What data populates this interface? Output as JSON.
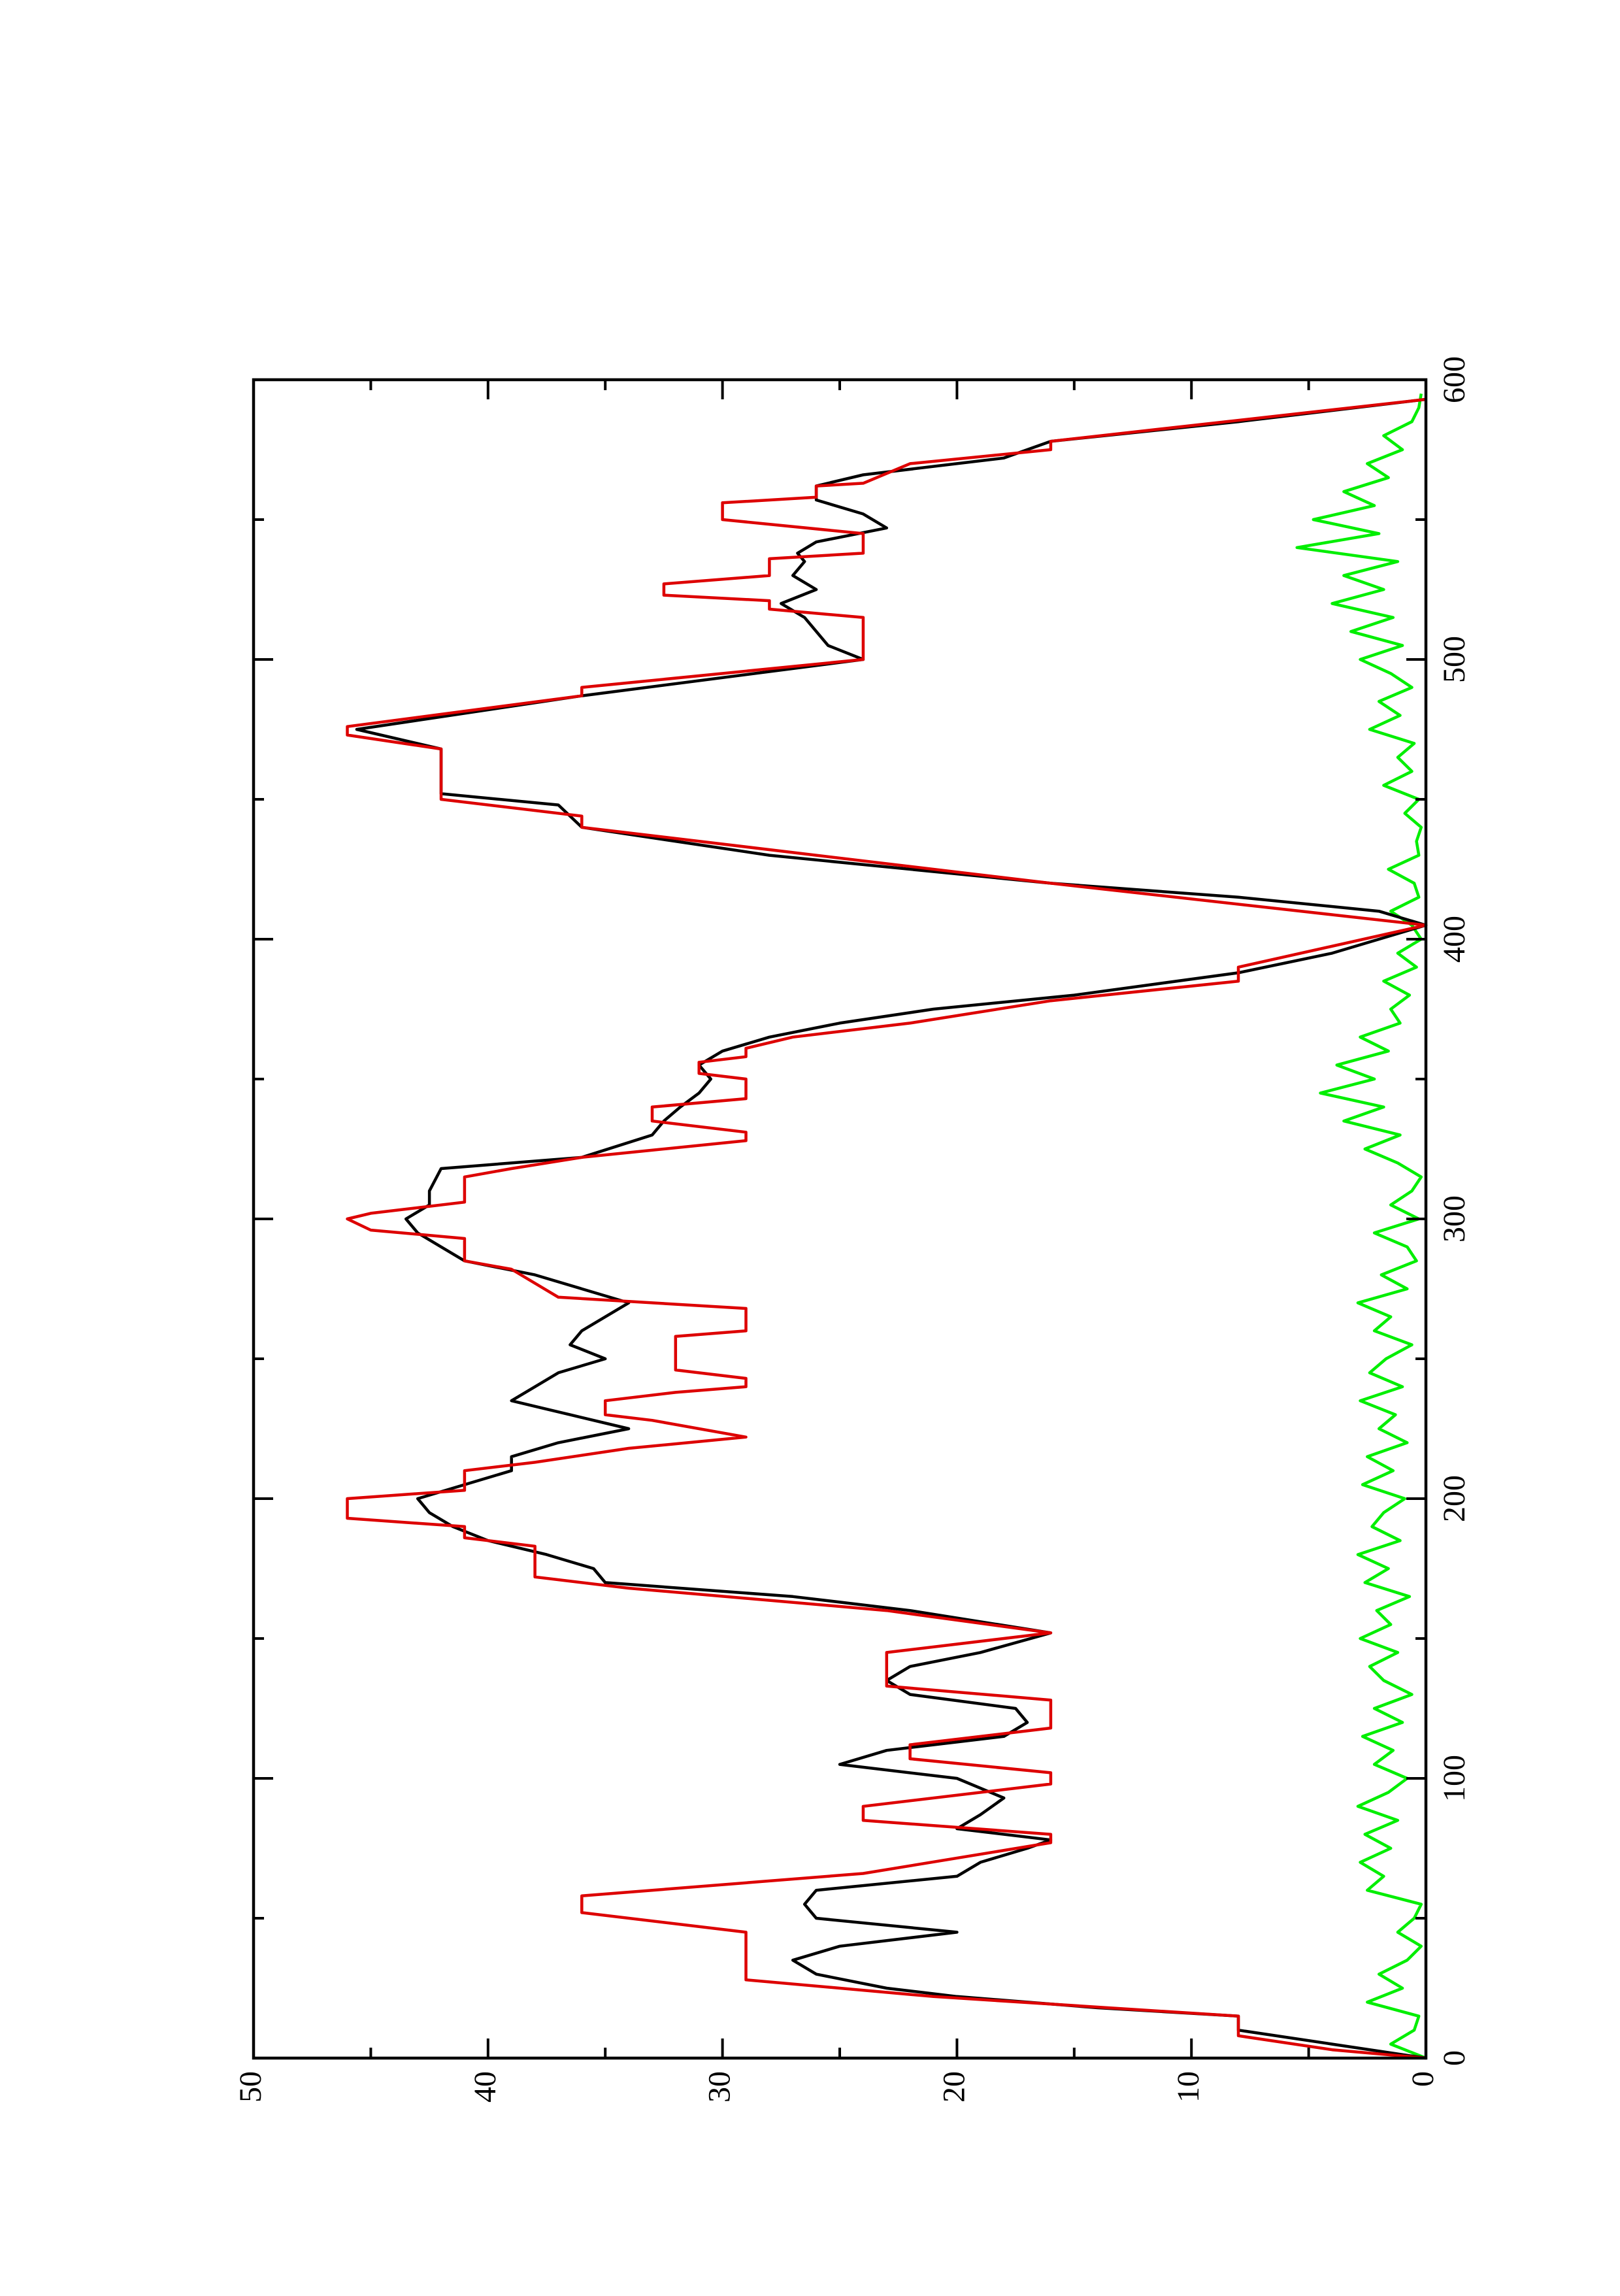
{
  "chart_data": {
    "type": "line",
    "xlim": [
      0,
      600
    ],
    "xticks": [
      0,
      100,
      200,
      300,
      400,
      500,
      600
    ],
    "minor_xticks": [
      50,
      150,
      250,
      350,
      450,
      550
    ],
    "ylim": [
      0,
      50
    ],
    "yticks": [
      0,
      10,
      20,
      30,
      40,
      50
    ],
    "minor_yticks": [
      5,
      15,
      25,
      35,
      45
    ],
    "series": [
      {
        "color": "#00ee00",
        "x": [
          0,
          5,
          10,
          15,
          20,
          25,
          30,
          35,
          40,
          45,
          50,
          55,
          60,
          65,
          70,
          75,
          80,
          85,
          90,
          95,
          100,
          105,
          110,
          115,
          120,
          125,
          130,
          135,
          140,
          145,
          150,
          155,
          160,
          165,
          170,
          175,
          180,
          185,
          190,
          195,
          200,
          205,
          210,
          215,
          220,
          225,
          230,
          235,
          240,
          245,
          250,
          255,
          260,
          265,
          270,
          275,
          280,
          285,
          290,
          295,
          300,
          305,
          310,
          315,
          320,
          325,
          330,
          335,
          340,
          345,
          350,
          355,
          360,
          365,
          370,
          375,
          380,
          385,
          390,
          395,
          400,
          405,
          410,
          415,
          420,
          425,
          430,
          435,
          440,
          445,
          450,
          455,
          460,
          465,
          470,
          475,
          480,
          485,
          490,
          495,
          500,
          505,
          510,
          515,
          520,
          525,
          530,
          535,
          540,
          545,
          550,
          555,
          560,
          565,
          570,
          575,
          580,
          585,
          590,
          595
        ],
        "values": [
          0,
          1.5,
          0.5,
          0.3,
          2.5,
          1,
          2,
          0.8,
          0.2,
          1.2,
          0.5,
          0.2,
          2.5,
          1.8,
          2.8,
          1.5,
          2.6,
          1.2,
          2.9,
          1.6,
          0.8,
          2.2,
          1.4,
          2.7,
          1,
          2.2,
          0.6,
          1.8,
          2.4,
          1.2,
          2.8,
          1.5,
          2.1,
          0.7,
          2.6,
          1.6,
          2.9,
          1.1,
          2.3,
          1.8,
          0.9,
          2.7,
          1.4,
          2.5,
          0.8,
          2,
          1.3,
          2.8,
          1,
          2.4,
          1.7,
          0.6,
          2.2,
          1.5,
          2.9,
          0.8,
          1.9,
          0.4,
          0.8,
          2.2,
          0.3,
          1.5,
          0.6,
          0.2,
          1.2,
          2.6,
          1.1,
          3.5,
          1.8,
          4.5,
          2.2,
          3.8,
          1.6,
          2.8,
          1.1,
          1.5,
          0.7,
          1.8,
          0.4,
          1.2,
          0.2,
          0.6,
          1.5,
          0.3,
          0.5,
          1.6,
          0.3,
          0.4,
          0.2,
          0.9,
          0.3,
          1.8,
          0.6,
          1.2,
          0.5,
          2.4,
          1.1,
          2,
          0.6,
          1.5,
          2.8,
          1,
          3.2,
          1.4,
          4,
          1.8,
          3.5,
          1.2,
          5.5,
          2,
          4.8,
          2.2,
          3.5,
          1.6,
          2.5,
          1,
          1.8,
          0.6,
          0.3,
          0.2
        ]
      },
      {
        "color": "#000000",
        "x": [
          0,
          5,
          10,
          15,
          18,
          22,
          25,
          30,
          35,
          40,
          45,
          50,
          55,
          60,
          65,
          70,
          75,
          78,
          82,
          87,
          93,
          100,
          105,
          110,
          115,
          120,
          125,
          130,
          135,
          140,
          145,
          152,
          160,
          165,
          170,
          175,
          180,
          185,
          190,
          195,
          200,
          205,
          210,
          215,
          220,
          225,
          230,
          235,
          240,
          245,
          250,
          255,
          260,
          265,
          270,
          275,
          280,
          285,
          290,
          295,
          300,
          305,
          310,
          318,
          322,
          330,
          335,
          340,
          345,
          350,
          355,
          360,
          365,
          370,
          375,
          380,
          388,
          395,
          405,
          410,
          415,
          420,
          430,
          440,
          448,
          452,
          468,
          475,
          487,
          500,
          505,
          515,
          520,
          525,
          530,
          535,
          538,
          542,
          547,
          552,
          557,
          562,
          566,
          572,
          578,
          585,
          593
        ],
        "values": [
          0,
          4,
          8,
          8,
          14,
          20,
          23,
          26,
          27,
          25,
          20,
          26,
          26.5,
          26,
          20,
          19,
          17,
          16,
          20,
          19,
          18,
          20,
          25,
          23,
          18,
          17,
          17.5,
          22,
          23,
          22,
          19,
          16,
          22,
          27,
          35,
          35.5,
          37.5,
          40,
          41.5,
          42.5,
          43,
          41,
          39,
          39,
          37,
          34,
          36.5,
          39,
          38,
          37,
          35,
          36.5,
          36,
          35,
          34,
          36,
          38,
          41,
          42,
          43,
          43.5,
          42.5,
          42.5,
          42,
          36,
          33,
          32.5,
          31.8,
          31,
          30.5,
          31,
          30,
          28,
          25,
          21,
          15,
          8,
          4,
          0,
          2,
          8,
          16,
          28,
          36,
          37,
          42,
          42,
          45.6,
          36,
          24,
          25.5,
          26.5,
          27.5,
          26,
          27,
          26.5,
          26.8,
          26,
          23,
          24,
          26,
          26,
          24,
          18,
          16,
          8,
          0
        ]
      },
      {
        "color": "#dd0000",
        "x": [
          0,
          3,
          8,
          15,
          22,
          28,
          45,
          52,
          58,
          66,
          77,
          80,
          85,
          90,
          98,
          102,
          107,
          112,
          118,
          128,
          133,
          145,
          152,
          160,
          168,
          172,
          183,
          186,
          190,
          193,
          200,
          203,
          210,
          213,
          218,
          222,
          228,
          230,
          235,
          238,
          240,
          243,
          246,
          258,
          260,
          268,
          272,
          282,
          285,
          293,
          296,
          300,
          302,
          306,
          315,
          318,
          322,
          328,
          331,
          335,
          340,
          343,
          350,
          352,
          356,
          358,
          361,
          365,
          370,
          378,
          385,
          390,
          405,
          420,
          440,
          444,
          450,
          468,
          473,
          476,
          487,
          490,
          500,
          515,
          518,
          521,
          523,
          527,
          530,
          536,
          538,
          545,
          550,
          556,
          558,
          562,
          563,
          570,
          575,
          578,
          593
        ],
        "values": [
          0,
          4,
          8,
          8,
          21,
          29,
          29,
          36,
          36,
          24,
          16,
          16,
          24,
          24,
          16,
          16,
          22,
          22,
          16,
          16,
          23,
          23,
          16,
          23,
          34,
          38,
          38,
          41,
          41,
          46,
          46,
          41,
          41,
          38,
          34,
          29,
          33,
          35,
          35,
          32,
          29,
          29,
          32,
          32,
          29,
          29,
          37,
          39,
          41,
          41,
          45,
          46,
          45,
          41,
          41,
          39,
          36,
          29,
          29,
          33,
          33,
          29,
          29,
          31,
          31,
          29,
          29,
          27,
          22,
          16,
          8,
          8,
          0,
          16,
          36,
          36,
          42,
          42,
          46,
          46,
          36,
          36,
          24,
          24,
          28,
          28,
          32.5,
          32.5,
          28,
          28,
          24,
          24,
          30,
          30,
          26,
          26,
          24,
          22,
          16,
          16,
          0
        ]
      }
    ]
  }
}
